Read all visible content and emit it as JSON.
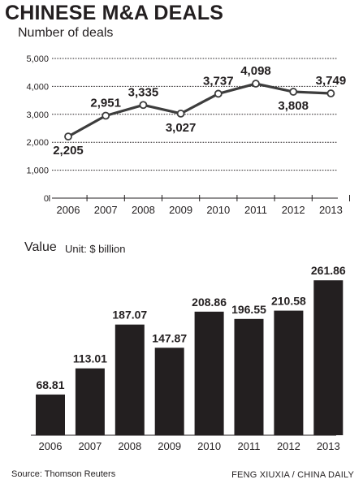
{
  "title": "CHINESE M&A DEALS",
  "source": "Source: Thomson Reuters",
  "credit": "FENG XIUXIA / CHINA DAILY",
  "chart_data": [
    {
      "type": "line",
      "title": "Number of deals",
      "x": [
        "2006",
        "2007",
        "2008",
        "2009",
        "2010",
        "2011",
        "2012",
        "2013"
      ],
      "values": [
        2205,
        2951,
        3335,
        3027,
        3737,
        4098,
        3808,
        3749
      ],
      "labels": [
        "2,205",
        "2,951",
        "3,335",
        "3,027",
        "3,737",
        "4,098",
        "3,808",
        "3,749"
      ],
      "yticks": [
        "0",
        "1,000",
        "2,000",
        "3,000",
        "4,000",
        "5,000"
      ],
      "ylim": [
        0,
        5000
      ],
      "grid": true,
      "colors": {
        "line": "#3d3d3d",
        "marker_fill": "#ffffff"
      }
    },
    {
      "type": "bar",
      "title": "Value",
      "unit": "Unit: $ billion",
      "categories": [
        "2006",
        "2007",
        "2008",
        "2009",
        "2010",
        "2011",
        "2012",
        "2013"
      ],
      "values": [
        68.81,
        113.01,
        187.07,
        147.87,
        208.86,
        196.55,
        210.58,
        261.86
      ],
      "labels": [
        "68.81",
        "113.01",
        "187.07",
        "147.87",
        "208.86",
        "196.55",
        "210.58",
        "261.86"
      ],
      "ylim": [
        0,
        280
      ],
      "colors": {
        "bar": "#231f20"
      }
    }
  ]
}
